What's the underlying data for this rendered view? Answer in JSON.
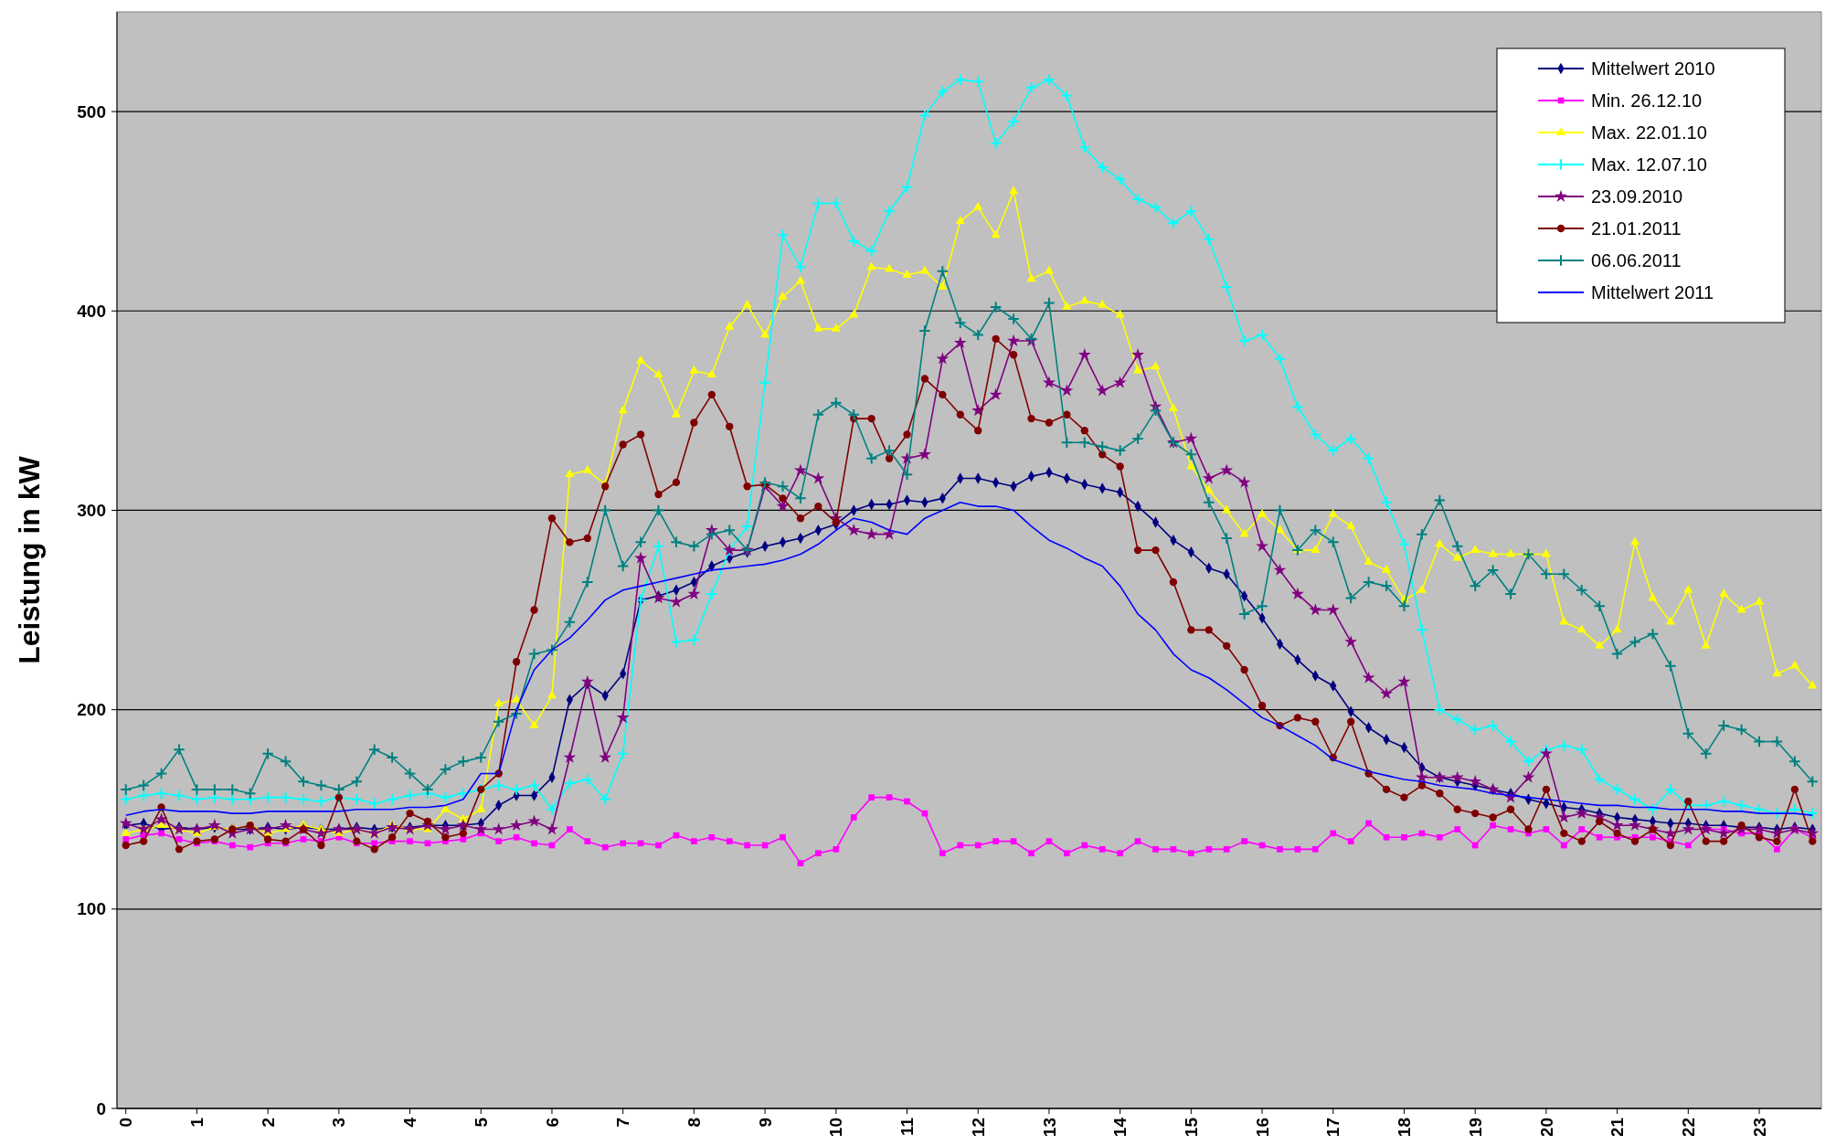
{
  "chart_data": {
    "type": "line",
    "ylabel": "Leistung in kW",
    "xlim": [
      -0.125,
      23.875
    ],
    "xticks": [
      0,
      1,
      2,
      3,
      4,
      5,
      6,
      7,
      8,
      9,
      10,
      11,
      12,
      13,
      14,
      15,
      16,
      17,
      18,
      19,
      20,
      21,
      22,
      23
    ],
    "ylim": [
      0,
      550
    ],
    "yticks": [
      0,
      100,
      200,
      300,
      400,
      500
    ],
    "grid": "y",
    "legend": "top right",
    "x": [
      0,
      0.25,
      0.5,
      0.75,
      1,
      1.25,
      1.5,
      1.75,
      2,
      2.25,
      2.5,
      2.75,
      3,
      3.25,
      3.5,
      3.75,
      4,
      4.25,
      4.5,
      4.75,
      5,
      5.25,
      5.5,
      5.75,
      6,
      6.25,
      6.5,
      6.75,
      7,
      7.25,
      7.5,
      7.75,
      8,
      8.25,
      8.5,
      8.75,
      9,
      9.25,
      9.5,
      9.75,
      10,
      10.25,
      10.5,
      10.75,
      11,
      11.25,
      11.5,
      11.75,
      12,
      12.25,
      12.5,
      12.75,
      13,
      13.25,
      13.5,
      13.75,
      14,
      14.25,
      14.5,
      14.75,
      15,
      15.25,
      15.5,
      15.75,
      16,
      16.25,
      16.5,
      16.75,
      17,
      17.25,
      17.5,
      17.75,
      18,
      18.25,
      18.5,
      18.75,
      19,
      19.25,
      19.5,
      19.75,
      20,
      20.25,
      20.5,
      20.75,
      21,
      21.25,
      21.5,
      21.75,
      22,
      22.25,
      22.5,
      22.75,
      23,
      23.25,
      23.5,
      23.75
    ],
    "series": [
      {
        "name": "Mittelwert 2010",
        "color": "#000080",
        "marker": "diamond",
        "values": [
          142,
          143,
          140,
          141,
          140,
          141,
          140,
          140,
          141,
          140,
          141,
          140,
          140,
          141,
          140,
          141,
          141,
          142,
          142,
          142,
          143,
          152,
          157,
          157,
          166,
          205,
          213,
          207,
          218,
          255,
          257,
          260,
          264,
          272,
          276,
          279,
          282,
          284,
          286,
          290,
          293,
          300,
          303,
          303,
          305,
          304,
          306,
          316,
          316,
          314,
          312,
          317,
          319,
          316,
          313,
          311,
          309,
          302,
          294,
          285,
          279,
          271,
          268,
          257,
          246,
          233,
          225,
          217,
          212,
          199,
          191,
          185,
          181,
          171,
          166,
          164,
          162,
          160,
          158,
          155,
          153,
          151,
          150,
          148,
          146,
          145,
          144,
          143,
          143,
          142,
          142,
          141,
          141,
          140,
          141,
          140
        ]
      },
      {
        "name": "Min. 26.12.10",
        "color": "#ff00ff",
        "marker": "square",
        "values": [
          135,
          137,
          138,
          135,
          133,
          134,
          132,
          131,
          133,
          133,
          135,
          134,
          136,
          133,
          133,
          134,
          134,
          133,
          134,
          135,
          138,
          134,
          136,
          133,
          132,
          140,
          134,
          131,
          133,
          133,
          132,
          137,
          134,
          136,
          134,
          132,
          132,
          136,
          123,
          128,
          130,
          146,
          156,
          156,
          154,
          148,
          128,
          132,
          132,
          134,
          134,
          128,
          134,
          128,
          132,
          130,
          128,
          134,
          130,
          130,
          128,
          130,
          130,
          134,
          132,
          130,
          130,
          130,
          138,
          134,
          143,
          136,
          136,
          138,
          136,
          140,
          132,
          142,
          140,
          138,
          140,
          132,
          140,
          136,
          136,
          136,
          136,
          134,
          132,
          140,
          140,
          138,
          138,
          130,
          140,
          136
        ]
      },
      {
        "name": "Max. 22.01.10",
        "color": "#ffff00",
        "marker": "triangle",
        "values": [
          138,
          140,
          142,
          140,
          138,
          141,
          140,
          142,
          138,
          140,
          142,
          140,
          138,
          140,
          138,
          142,
          140,
          140,
          150,
          145,
          150,
          203,
          205,
          192,
          207,
          318,
          320,
          313,
          350,
          375,
          368,
          348,
          370,
          368,
          392,
          403,
          388,
          407,
          415,
          391,
          391,
          398,
          422,
          421,
          418,
          420,
          412,
          445,
          452,
          438,
          460,
          416,
          420,
          402,
          405,
          403,
          398,
          370,
          372,
          351,
          322,
          310,
          300,
          288,
          298,
          290,
          280,
          280,
          298,
          292,
          274,
          270,
          255,
          260,
          283,
          276,
          280,
          278,
          278,
          278,
          278,
          244,
          240,
          232,
          240,
          284,
          256,
          244,
          260,
          232,
          258,
          250,
          254,
          218,
          222,
          212
        ]
      },
      {
        "name": "Max. 12.07.10",
        "color": "#00ffff",
        "marker": "cross",
        "values": [
          155,
          157,
          158,
          157,
          155,
          156,
          155,
          155,
          156,
          156,
          155,
          154,
          156,
          155,
          153,
          155,
          157,
          158,
          156,
          158,
          160,
          162,
          160,
          162,
          150,
          163,
          165,
          155,
          178,
          255,
          282,
          234,
          235,
          258,
          280,
          292,
          364,
          438,
          422,
          454,
          454,
          435,
          430,
          450,
          462,
          498,
          510,
          516,
          515,
          484,
          495,
          512,
          516,
          508,
          482,
          472,
          466,
          456,
          452,
          444,
          450,
          436,
          412,
          385,
          388,
          376,
          352,
          338,
          330,
          336,
          326,
          304,
          283,
          240,
          200,
          195,
          190,
          192,
          184,
          174,
          180,
          182,
          180,
          165,
          160,
          155,
          150,
          160,
          152,
          152,
          154,
          152,
          150,
          148,
          150,
          148
        ]
      },
      {
        "name": "23.09.2010",
        "color": "#800080",
        "marker": "star",
        "values": [
          143,
          140,
          145,
          140,
          140,
          142,
          138,
          140,
          140,
          142,
          140,
          138,
          140,
          140,
          138,
          141,
          140,
          142,
          140,
          142,
          140,
          140,
          142,
          144,
          140,
          176,
          214,
          176,
          196,
          276,
          256,
          254,
          258,
          290,
          280,
          280,
          312,
          302,
          320,
          316,
          296,
          290,
          288,
          288,
          326,
          328,
          376,
          384,
          350,
          358,
          385,
          385,
          364,
          360,
          378,
          360,
          364,
          378,
          352,
          334,
          336,
          316,
          320,
          314,
          282,
          270,
          258,
          250,
          250,
          234,
          216,
          208,
          214,
          166,
          166,
          166,
          164,
          160,
          156,
          166,
          178,
          146,
          148,
          146,
          142,
          142,
          140,
          138,
          140,
          140,
          138,
          140,
          140,
          138,
          140,
          138
        ]
      },
      {
        "name": "21.01.2011",
        "color": "#800000",
        "marker": "circle",
        "values": [
          132,
          134,
          151,
          130,
          134,
          135,
          140,
          142,
          135,
          134,
          140,
          132,
          156,
          134,
          130,
          136,
          148,
          144,
          136,
          138,
          160,
          168,
          224,
          250,
          296,
          284,
          286,
          312,
          333,
          338,
          308,
          314,
          344,
          358,
          342,
          312,
          313,
          306,
          296,
          302,
          294,
          346,
          346,
          326,
          338,
          366,
          358,
          348,
          340,
          386,
          378,
          346,
          344,
          348,
          340,
          328,
          322,
          280,
          280,
          264,
          240,
          240,
          232,
          220,
          202,
          192,
          196,
          194,
          176,
          194,
          168,
          160,
          156,
          162,
          158,
          150,
          148,
          146,
          150,
          140,
          160,
          138,
          134,
          144,
          138,
          134,
          140,
          132,
          154,
          134,
          134,
          142,
          136,
          134,
          160,
          134
        ]
      },
      {
        "name": "06.06.2011",
        "color": "#008080",
        "marker": "cross",
        "values": [
          160,
          162,
          168,
          180,
          160,
          160,
          160,
          158,
          178,
          174,
          164,
          162,
          160,
          164,
          180,
          176,
          168,
          160,
          170,
          174,
          176,
          194,
          198,
          228,
          230,
          244,
          264,
          300,
          272,
          284,
          300,
          284,
          282,
          288,
          290,
          280,
          314,
          312,
          306,
          348,
          354,
          348,
          326,
          330,
          318,
          390,
          420,
          394,
          388,
          402,
          396,
          386,
          404,
          334,
          334,
          332,
          330,
          336,
          350,
          334,
          328,
          304,
          286,
          248,
          252,
          300,
          280,
          290,
          284,
          256,
          264,
          262,
          252,
          288,
          305,
          282,
          262,
          270,
          258,
          278,
          268,
          268,
          260,
          252,
          228,
          234,
          238,
          222,
          188,
          178,
          192,
          190,
          184,
          184,
          174,
          164
        ]
      },
      {
        "name": "Mittelwert 2011",
        "color": "#0000ff",
        "marker": "none",
        "values": [
          147,
          149,
          150,
          149,
          149,
          149,
          148,
          148,
          149,
          149,
          149,
          149,
          149,
          150,
          150,
          150,
          151,
          151,
          152,
          155,
          168,
          168,
          200,
          220,
          230,
          236,
          245,
          255,
          260,
          262,
          264,
          266,
          268,
          270,
          271,
          272,
          273,
          275,
          278,
          283,
          290,
          296,
          294,
          290,
          288,
          296,
          300,
          304,
          302,
          302,
          300,
          292,
          285,
          281,
          276,
          272,
          262,
          248,
          240,
          228,
          220,
          216,
          210,
          203,
          196,
          192,
          187,
          182,
          175,
          172,
          169,
          167,
          165,
          164,
          162,
          161,
          160,
          158,
          157,
          156,
          155,
          154,
          153,
          152,
          152,
          151,
          151,
          150,
          150,
          150,
          149,
          149,
          148,
          148,
          148,
          147
        ]
      }
    ]
  }
}
